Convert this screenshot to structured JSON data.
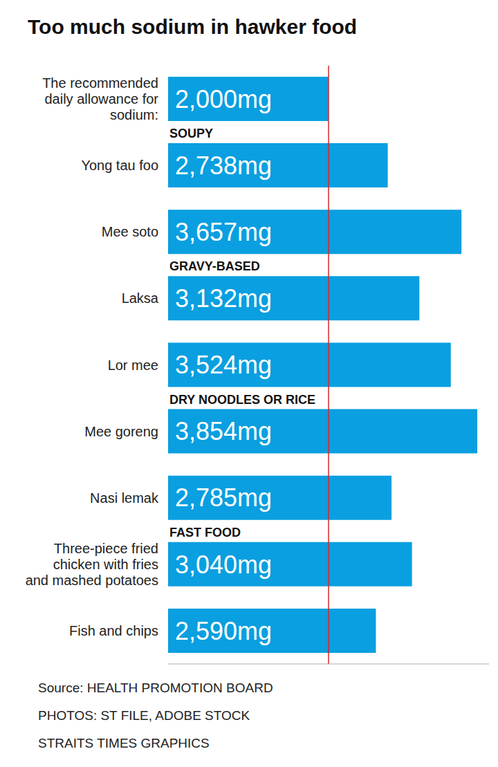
{
  "chart_data": {
    "type": "bar",
    "title": "Too much sodium in hawker food",
    "orientation": "horizontal",
    "categories": [
      "The recommended daily allowance for sodium:",
      "Yong tau foo",
      "Mee soto",
      "Laksa",
      "Lor mee",
      "Mee goreng",
      "Nasi lemak",
      "Three-piece fried chicken with fries and mashed potatoes",
      "Fish and chips"
    ],
    "values": [
      2000,
      2738,
      3657,
      3132,
      3524,
      3854,
      2785,
      3040,
      2590
    ],
    "value_labels": [
      "2,000mg",
      "2,738mg",
      "3,657mg",
      "3,132mg",
      "3,524mg",
      "3,854mg",
      "2,785mg",
      "3,040mg",
      "2,590mg"
    ],
    "data_labels": true,
    "color": "#0a9fe0",
    "groups": [
      {
        "name": "SOUPY",
        "categories": [
          "Yong tau foo",
          "Mee soto"
        ]
      },
      {
        "name": "GRAVY-BASED",
        "categories": [
          "Laksa",
          "Lor mee"
        ]
      },
      {
        "name": "DRY NOODLES OR RICE",
        "categories": [
          "Mee goreng",
          "Nasi lemak"
        ]
      },
      {
        "name": "FAST FOOD",
        "categories": [
          "Three-piece fried chicken with fries and mashed potatoes",
          "Fish and chips"
        ]
      }
    ],
    "xlim": [
      0,
      4000
    ],
    "tick_labels": false,
    "grid": false,
    "annotations": [
      "Source: HEALTH PROMOTION BOARD",
      "PHOTOS: ST FILE, ADOBE STOCK",
      "STRAITS TIMES GRAPHICS"
    ]
  }
}
